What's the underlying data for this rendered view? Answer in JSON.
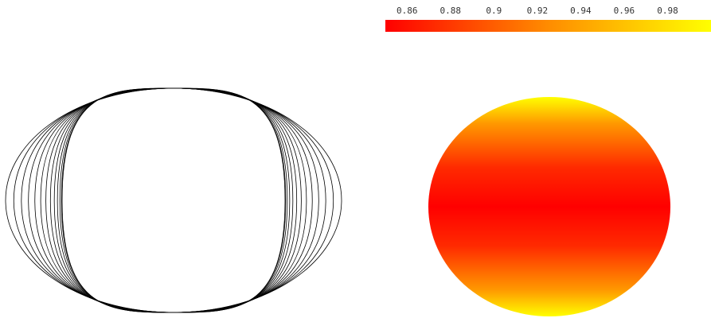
{
  "chart_data": [
    {
      "type": "line",
      "description_of_shape": "family of nested lens curves converging toward a circle",
      "curve_count": 13,
      "grid": false,
      "stroke_color": "#000000"
    },
    {
      "type": "heatmap",
      "shape": "disk",
      "colormap": {
        "low": "#ff0000",
        "mid": "#ff8c00",
        "high": "#ffff00"
      },
      "colorbar": {
        "ticks": [
          "0.86",
          "0.88",
          "0.9",
          "0.92",
          "0.94",
          "0.96",
          "0.98"
        ],
        "range": [
          0.85,
          1.0
        ],
        "placement": "top"
      },
      "value_at_center": 0.85,
      "value_at_poles": 1.0
    }
  ]
}
